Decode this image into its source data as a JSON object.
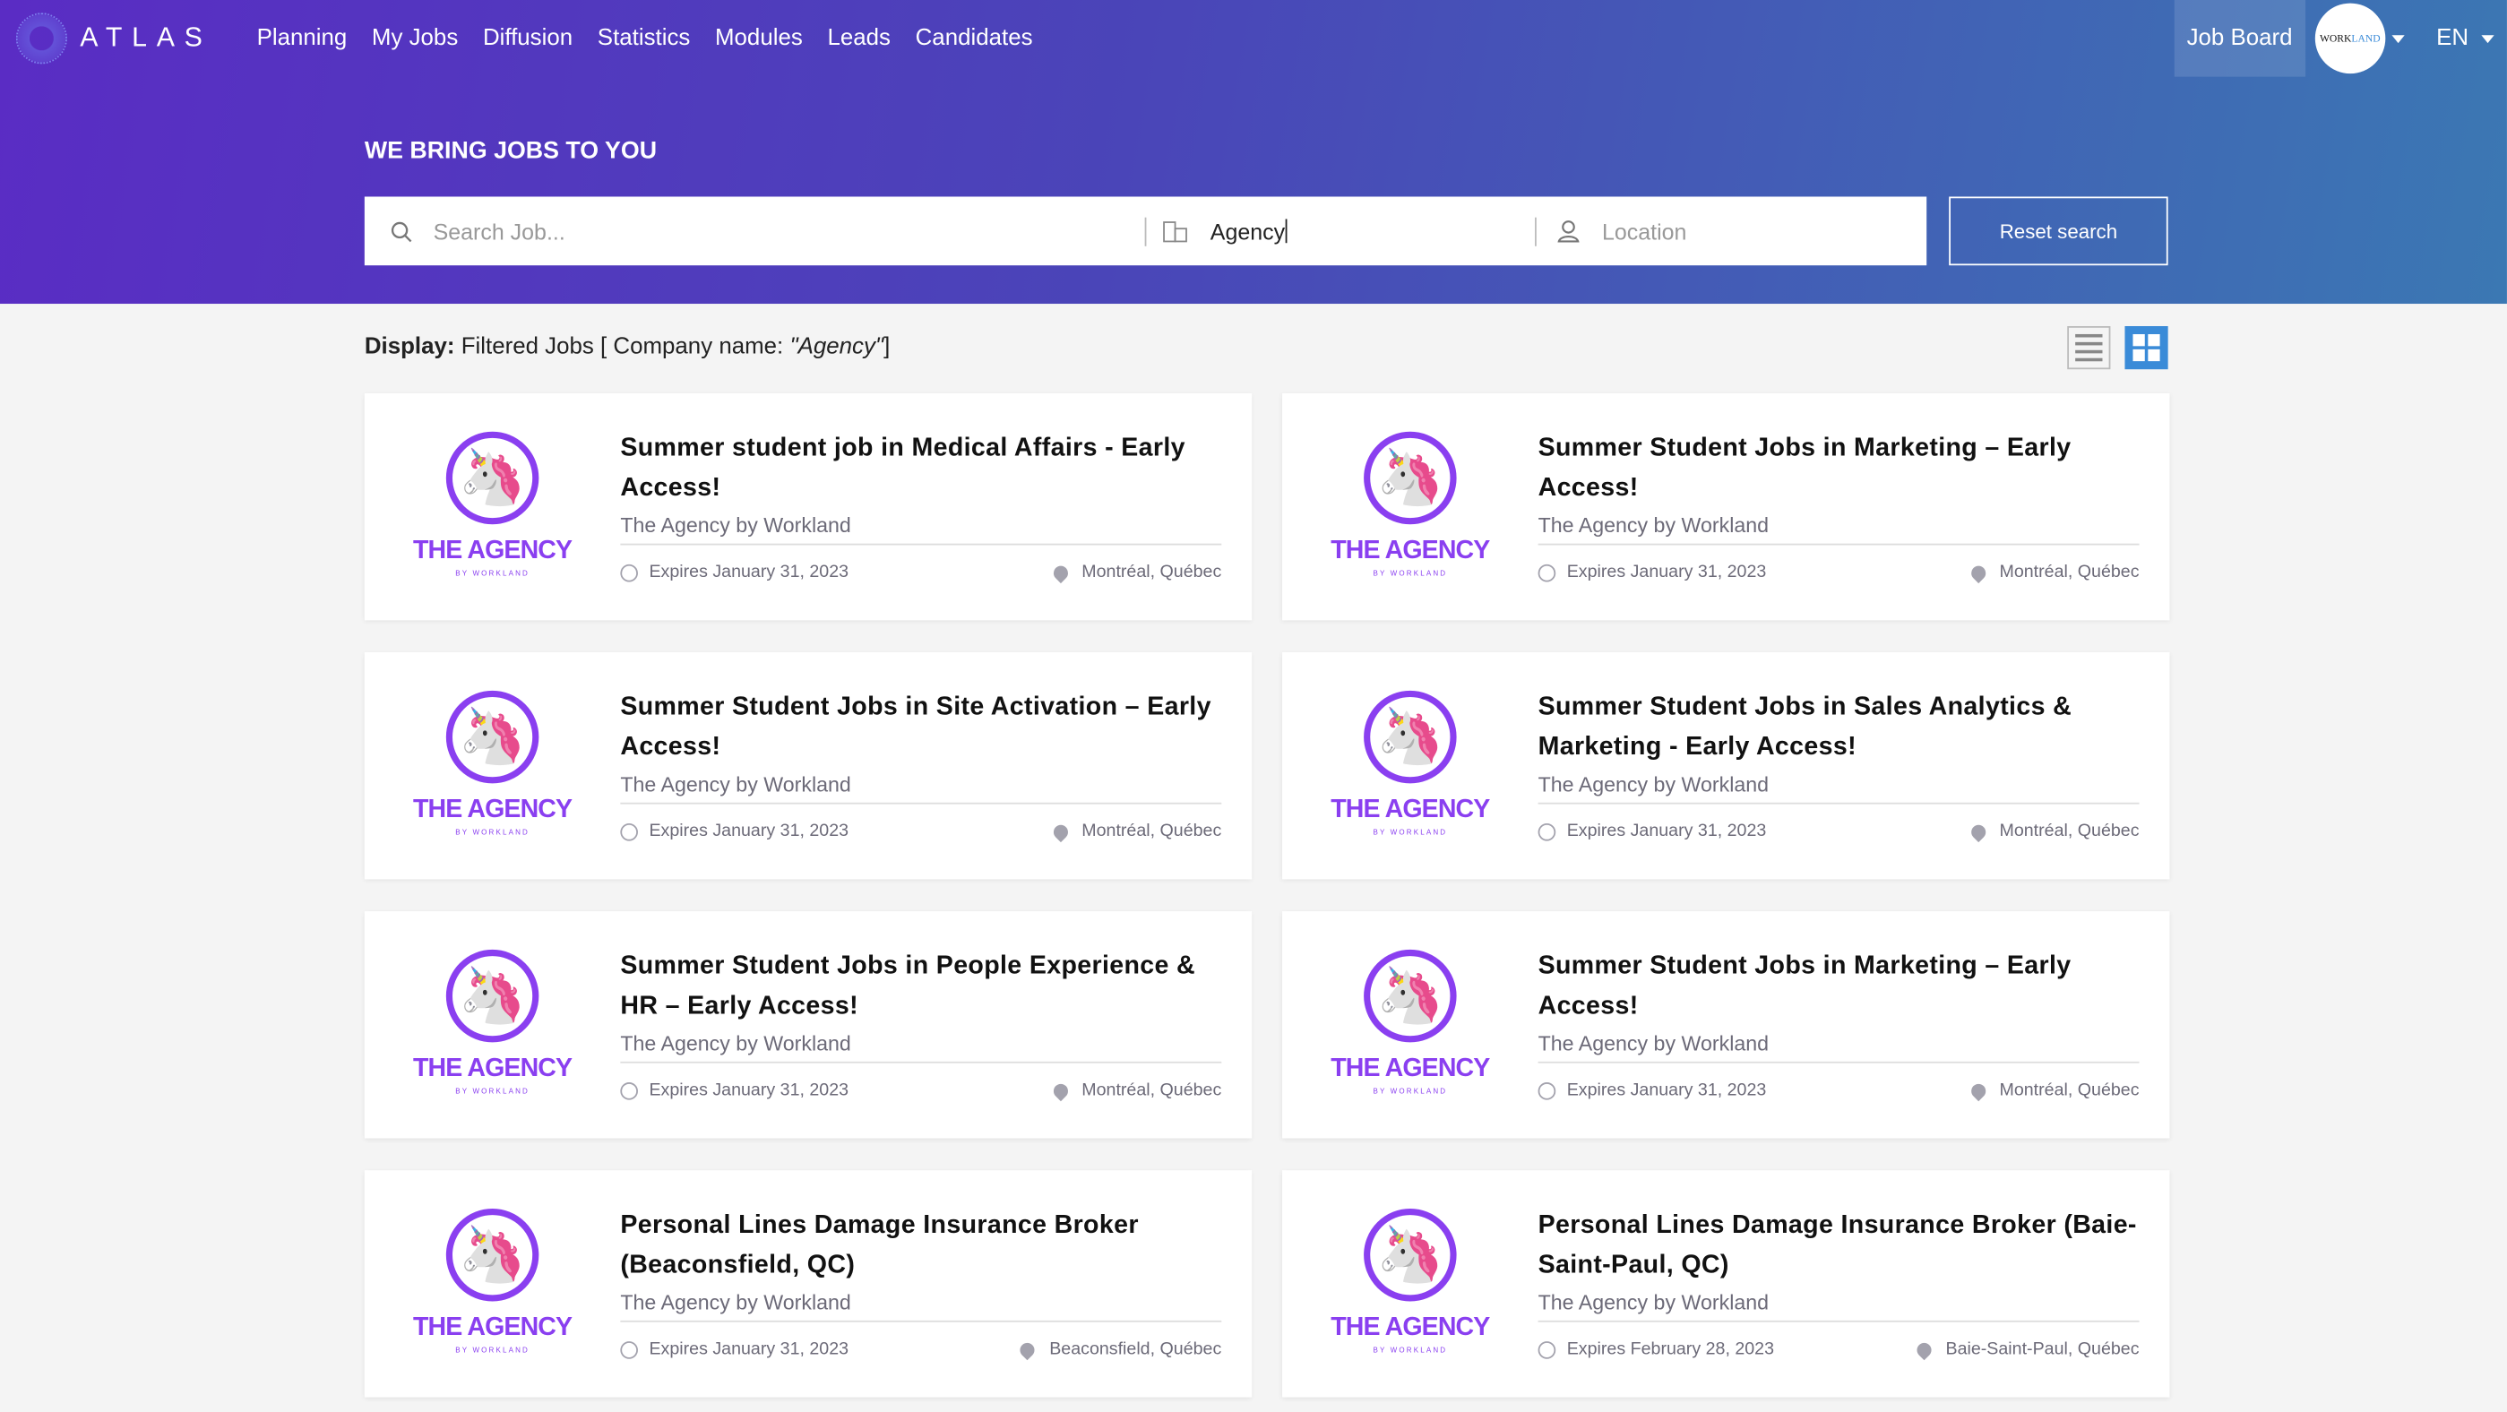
{
  "nav": {
    "brand": "ATLAS",
    "items": [
      "Planning",
      "My Jobs",
      "Diffusion",
      "Statistics",
      "Modules",
      "Leads",
      "Candidates"
    ],
    "job_board": "Job Board",
    "avatar_text_a": "WORK",
    "avatar_text_b": "LAND",
    "lang": "EN"
  },
  "hero": {
    "title": "WE BRING JOBS TO YOU",
    "search_placeholder": "Search Job...",
    "company_value": "Agency",
    "location_placeholder": "Location",
    "reset": "Reset search"
  },
  "display": {
    "label": "Display:",
    "text": "Filtered Jobs [ Company name: ",
    "query": "\"Agency\"",
    "close": "]"
  },
  "logo": {
    "name": "THE AGENCY",
    "sub": "BY WORKLAND"
  },
  "jobs": [
    {
      "title": "Summer student job in Medical Affairs - Early Access!",
      "company": "The Agency by Workland",
      "expires": "Expires January 31, 2023",
      "location": "Montréal, Québec"
    },
    {
      "title": "Summer Student Jobs in Marketing – Early Access!",
      "company": "The Agency by Workland",
      "expires": "Expires January 31, 2023",
      "location": "Montréal, Québec"
    },
    {
      "title": "Summer Student Jobs in Site Activation  – Early Access!",
      "company": "The Agency by Workland",
      "expires": "Expires January 31, 2023",
      "location": "Montréal, Québec"
    },
    {
      "title": "Summer Student Jobs in Sales Analytics & Marketing - Early Access!",
      "company": "The Agency by Workland",
      "expires": "Expires January 31, 2023",
      "location": "Montréal, Québec"
    },
    {
      "title": "Summer Student Jobs in People Experience & HR – Early Access!",
      "company": "The Agency by Workland",
      "expires": "Expires January 31, 2023",
      "location": "Montréal, Québec"
    },
    {
      "title": "Summer Student Jobs in Marketing – Early Access!",
      "company": "The Agency by Workland",
      "expires": "Expires January 31, 2023",
      "location": "Montréal, Québec"
    },
    {
      "title": "Personal Lines Damage Insurance Broker (Beaconsfield, QC)",
      "company": "The Agency by Workland",
      "expires": "Expires January 31, 2023",
      "location": "Beaconsfield, Québec"
    },
    {
      "title": "Personal Lines Damage Insurance Broker (Baie-Saint-Paul, QC)",
      "company": "The Agency by Workland",
      "expires": "Expires February 28, 2023",
      "location": "Baie-Saint-Paul, Québec"
    }
  ],
  "colors": {
    "brand_purple": "#8a3ff0",
    "header_start": "#5a2cc4",
    "header_end": "#3b78b3",
    "grid_view_active": "#3a8bd8"
  }
}
